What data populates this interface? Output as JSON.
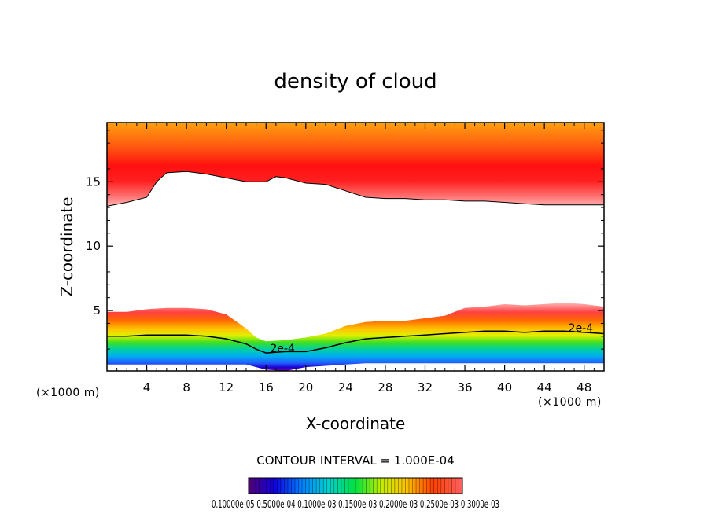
{
  "chart_data": {
    "type": "contour",
    "title": "density of cloud",
    "xlabel": "X-coordinate",
    "ylabel": "Z-coordinate",
    "x_unit": "(×1000 m)",
    "x_unit_right": "(×1000 m)",
    "xlim": [
      0,
      50
    ],
    "ylim": [
      0.3,
      19.6
    ],
    "xticks": [
      4,
      8,
      12,
      16,
      20,
      24,
      28,
      32,
      36,
      40,
      44,
      48
    ],
    "yticks": [
      5,
      10,
      15
    ],
    "contour_interval_text": "CONTOUR INTERVAL = 1.000E-04",
    "contour_labels": [
      "2e-4",
      "2e-4"
    ],
    "colorbar_labels_text": "0.10000e-05 0.5000e-04 0.1000e-03 0.1500e-03 0.2000e-03 0.2500e-03 0.3000e-03",
    "colorbar_range": [
      1e-06,
      0.0003
    ],
    "upper_layer": {
      "x": [
        0,
        2,
        4,
        5,
        6,
        8,
        10,
        12,
        14,
        16,
        17,
        18,
        20,
        22,
        24,
        26,
        28,
        30,
        32,
        34,
        36,
        38,
        40,
        42,
        44,
        46,
        48,
        50
      ],
      "z_base": [
        13.1,
        13.4,
        13.8,
        15.0,
        15.7,
        15.8,
        15.6,
        15.3,
        15.0,
        15.0,
        15.4,
        15.3,
        14.9,
        14.8,
        14.3,
        13.8,
        13.7,
        13.7,
        13.6,
        13.6,
        13.5,
        13.5,
        13.4,
        13.3,
        13.2,
        13.2,
        13.2,
        13.2
      ]
    },
    "lower_layer": {
      "x": [
        0,
        2,
        4,
        6,
        8,
        10,
        12,
        14,
        15,
        16,
        18,
        20,
        22,
        24,
        26,
        28,
        30,
        32,
        34,
        36,
        38,
        40,
        42,
        44,
        46,
        48,
        50
      ],
      "z_top": [
        4.9,
        4.9,
        5.1,
        5.2,
        5.2,
        5.1,
        4.7,
        3.6,
        2.9,
        2.6,
        2.7,
        2.9,
        3.2,
        3.8,
        4.1,
        4.2,
        4.2,
        4.4,
        4.6,
        5.2,
        5.3,
        5.5,
        5.4,
        5.5,
        5.6,
        5.5,
        5.3
      ],
      "z_2e4": [
        3.0,
        3.0,
        3.1,
        3.1,
        3.1,
        3.0,
        2.8,
        2.4,
        2.0,
        1.7,
        1.8,
        1.8,
        2.1,
        2.5,
        2.8,
        2.9,
        3.0,
        3.1,
        3.2,
        3.3,
        3.4,
        3.4,
        3.3,
        3.4,
        3.4,
        3.3,
        3.2
      ],
      "z_base": [
        0.8,
        0.8,
        0.8,
        0.8,
        0.8,
        0.8,
        0.8,
        0.8,
        0.6,
        0.4,
        0.3,
        0.6,
        0.7,
        0.8,
        0.9,
        0.9,
        0.9,
        0.9,
        0.9,
        0.9,
        0.9,
        0.9,
        0.9,
        0.9,
        0.9,
        0.9,
        0.9
      ]
    }
  }
}
